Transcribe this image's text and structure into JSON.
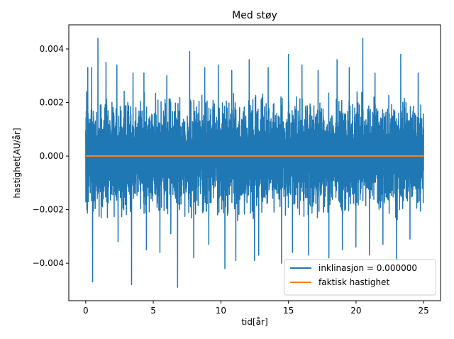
{
  "chart_data": {
    "type": "line",
    "title": "Med støy",
    "xlabel": "tid[år]",
    "ylabel": "hastighet[AU/år]",
    "xlim": [
      -1.25,
      26.25
    ],
    "ylim": [
      -0.0054,
      0.0049
    ],
    "xticks": [
      {
        "value": 0,
        "label": "0"
      },
      {
        "value": 5,
        "label": "5"
      },
      {
        "value": 10,
        "label": "10"
      },
      {
        "value": 15,
        "label": "15"
      },
      {
        "value": 20,
        "label": "20"
      },
      {
        "value": 25,
        "label": "25"
      }
    ],
    "yticks": [
      {
        "value": -0.004,
        "label": "−0.004"
      },
      {
        "value": -0.002,
        "label": "−0.002"
      },
      {
        "value": 0.0,
        "label": "0.000"
      },
      {
        "value": 0.002,
        "label": "0.002"
      },
      {
        "value": 0.004,
        "label": "0.004"
      }
    ],
    "grid": false,
    "legend_position": "lower-right",
    "noise_series": {
      "name": "inklinasjon = 0.000000",
      "color": "#1f77b4",
      "x_range": [
        0,
        25
      ],
      "typical_amplitude": 0.0025,
      "peaks": [
        {
          "x": 0.05,
          "y": 0.0024
        },
        {
          "x": 0.05,
          "y": -0.0016
        },
        {
          "x": 0.15,
          "y": 0.0033
        },
        {
          "x": 0.2,
          "y": -0.0017
        },
        {
          "x": 0.45,
          "y": 0.0033
        },
        {
          "x": 0.5,
          "y": -0.0019
        },
        {
          "x": 0.5,
          "y": -0.0047
        },
        {
          "x": 0.9,
          "y": 0.0044
        },
        {
          "x": 1.15,
          "y": -0.0023
        },
        {
          "x": 1.5,
          "y": 0.0035
        },
        {
          "x": 1.6,
          "y": -0.0023
        },
        {
          "x": 2.3,
          "y": 0.0034
        },
        {
          "x": 2.4,
          "y": -0.0032
        },
        {
          "x": 3.4,
          "y": -0.0048
        },
        {
          "x": 3.5,
          "y": 0.0031
        },
        {
          "x": 4.3,
          "y": 0.0031
        },
        {
          "x": 4.5,
          "y": -0.0035
        },
        {
          "x": 5.5,
          "y": -0.0036
        },
        {
          "x": 6.0,
          "y": 0.003
        },
        {
          "x": 6.3,
          "y": -0.0029
        },
        {
          "x": 6.8,
          "y": -0.0049
        },
        {
          "x": 7.7,
          "y": 0.0039
        },
        {
          "x": 8.0,
          "y": -0.0038
        },
        {
          "x": 8.8,
          "y": 0.0033
        },
        {
          "x": 9.1,
          "y": -0.0033
        },
        {
          "x": 9.8,
          "y": 0.0034
        },
        {
          "x": 10.3,
          "y": -0.0042
        },
        {
          "x": 10.8,
          "y": 0.0032
        },
        {
          "x": 11.1,
          "y": -0.0039
        },
        {
          "x": 12.1,
          "y": 0.0036
        },
        {
          "x": 12.5,
          "y": -0.0039
        },
        {
          "x": 12.8,
          "y": -0.0037
        },
        {
          "x": 13.5,
          "y": 0.0033
        },
        {
          "x": 14.5,
          "y": -0.004
        },
        {
          "x": 15.0,
          "y": 0.0038
        },
        {
          "x": 15.3,
          "y": -0.0036
        },
        {
          "x": 16.0,
          "y": 0.0034
        },
        {
          "x": 16.5,
          "y": -0.0037
        },
        {
          "x": 17.2,
          "y": 0.0032
        },
        {
          "x": 18.0,
          "y": -0.0038
        },
        {
          "x": 18.6,
          "y": 0.0036
        },
        {
          "x": 19.0,
          "y": -0.0035
        },
        {
          "x": 19.5,
          "y": 0.0033
        },
        {
          "x": 20.0,
          "y": -0.0034
        },
        {
          "x": 20.5,
          "y": 0.0044
        },
        {
          "x": 21.0,
          "y": -0.0037
        },
        {
          "x": 21.4,
          "y": 0.0031
        },
        {
          "x": 22.0,
          "y": -0.0033
        },
        {
          "x": 23.0,
          "y": -0.0039
        },
        {
          "x": 23.3,
          "y": 0.0038
        },
        {
          "x": 24.0,
          "y": -0.0031
        },
        {
          "x": 24.6,
          "y": 0.0031
        },
        {
          "x": 24.9,
          "y": -0.0003
        },
        {
          "x": 25.0,
          "y": 0.001
        }
      ]
    },
    "series": [
      {
        "name": "faktisk hastighet",
        "color": "#ff7f0e",
        "x": [
          0,
          25
        ],
        "y": [
          0.0,
          0.0
        ]
      }
    ]
  }
}
